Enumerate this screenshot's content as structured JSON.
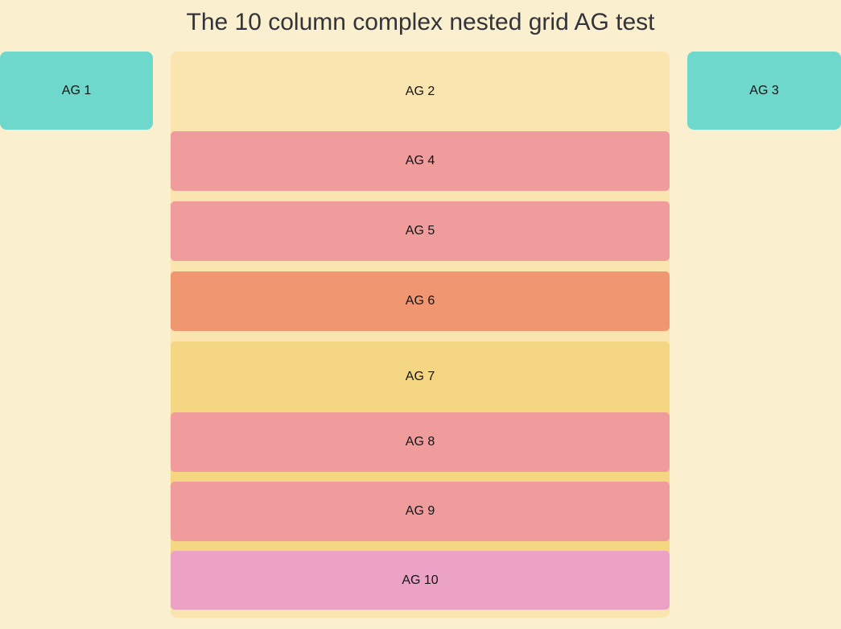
{
  "page": {
    "title": "The 10 column complex nested grid AG test",
    "background_color": "#FAEFCF",
    "title_color": "#33333A",
    "label_color": "#141414"
  },
  "grid": {
    "left": {
      "label": "AG 1",
      "color": "#6ED8CD"
    },
    "middle": {
      "label": "AG 2",
      "color": "#FAE5B0",
      "children": [
        {
          "id": "ag4",
          "label": "AG 4",
          "color": "#F09C9C"
        },
        {
          "id": "ag5",
          "label": "AG 5",
          "color": "#F09C9C"
        },
        {
          "id": "ag6",
          "label": "AG 6",
          "color": "#F09670"
        },
        {
          "id": "ag7",
          "label": "AG 7",
          "color": "#F5D682",
          "children": [
            {
              "id": "ag8",
              "label": "AG 8",
              "color": "#F09C9C"
            },
            {
              "id": "ag9",
              "label": "AG 9",
              "color": "#F09C9C"
            },
            {
              "id": "ag10",
              "label": "AG 10",
              "color": "#ECA2C4"
            }
          ]
        }
      ]
    },
    "right": {
      "label": "AG 3",
      "color": "#6ED8CD"
    }
  }
}
